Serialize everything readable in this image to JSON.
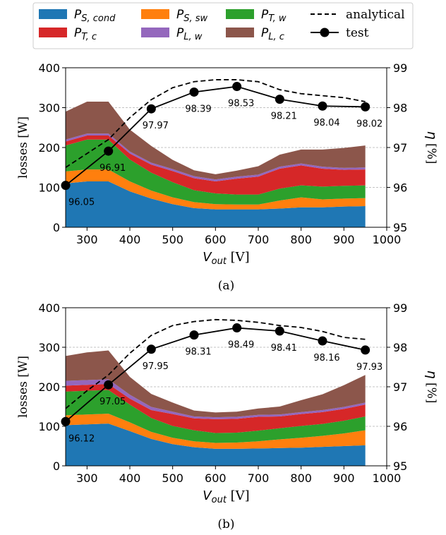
{
  "legend": {
    "placement": "top",
    "entries": [
      {
        "key": "p_s_cond",
        "base": "P",
        "sub": "S, cond",
        "color": "#1f77b4",
        "kind": "patch"
      },
      {
        "key": "p_t_c",
        "base": "P",
        "sub": "T, c",
        "color": "#d62728",
        "kind": "patch"
      },
      {
        "key": "p_s_sw",
        "base": "P",
        "sub": "S, sw",
        "color": "#ff7f0e",
        "kind": "patch"
      },
      {
        "key": "p_l_w",
        "base": "P",
        "sub": "L, w",
        "color": "#9467bd",
        "kind": "patch"
      },
      {
        "key": "p_t_w",
        "base": "P",
        "sub": "T, w",
        "color": "#2ca02c",
        "kind": "patch"
      },
      {
        "key": "p_l_c",
        "base": "P",
        "sub": "L, c",
        "color": "#8c564b",
        "kind": "patch"
      },
      {
        "key": "analytical",
        "label": "analytical",
        "kind": "dashed-line"
      },
      {
        "key": "test",
        "label": "test",
        "kind": "marker-line"
      }
    ]
  },
  "chart_data": [
    {
      "type": "area",
      "caption": "(a)",
      "xlabel_base": "V",
      "xlabel_sub": "out",
      "xlabel_unit": " [V]",
      "ylabel": "losses [W]",
      "y2label_base": "η",
      "y2label_unit": " [%]",
      "xlim": [
        250,
        1000
      ],
      "ylim": [
        0,
        400
      ],
      "y2lim": [
        95,
        99
      ],
      "xticks": [
        300,
        400,
        500,
        600,
        700,
        800,
        900,
        1000
      ],
      "yticks": [
        0,
        100,
        200,
        300,
        400
      ],
      "y2ticks": [
        95,
        96,
        97,
        98,
        99
      ],
      "grid": "horizontal dashed",
      "x": [
        250,
        300,
        350,
        400,
        450,
        500,
        550,
        600,
        650,
        700,
        750,
        800,
        850,
        900,
        950
      ],
      "series": [
        {
          "key": "p_s_cond",
          "values": [
            110,
            115,
            115,
            90,
            72,
            58,
            48,
            45,
            45,
            45,
            47,
            50,
            50,
            52,
            53
          ]
        },
        {
          "key": "p_s_sw",
          "values": [
            30,
            30,
            30,
            25,
            20,
            17,
            15,
            13,
            12,
            12,
            20,
            25,
            20,
            20,
            20
          ]
        },
        {
          "key": "p_t_w",
          "values": [
            65,
            75,
            75,
            55,
            45,
            38,
            30,
            27,
            25,
            25,
            30,
            30,
            32,
            32,
            32
          ]
        },
        {
          "key": "p_t_c",
          "values": [
            10,
            10,
            10,
            15,
            20,
            28,
            30,
            30,
            40,
            45,
            50,
            50,
            45,
            40,
            40
          ]
        },
        {
          "key": "p_l_w",
          "values": [
            5,
            5,
            5,
            5,
            5,
            5,
            5,
            5,
            5,
            5,
            5,
            5,
            5,
            5,
            5
          ]
        },
        {
          "key": "p_l_c",
          "values": [
            70,
            80,
            80,
            55,
            42,
            23,
            15,
            13,
            15,
            21,
            30,
            35,
            43,
            50,
            55
          ]
        }
      ],
      "analytical": {
        "x": [
          250,
          300,
          350,
          400,
          450,
          500,
          550,
          600,
          650,
          700,
          750,
          800,
          850,
          900,
          950
        ],
        "values": [
          96.5,
          96.85,
          97.2,
          97.75,
          98.2,
          98.5,
          98.65,
          98.7,
          98.7,
          98.65,
          98.45,
          98.35,
          98.3,
          98.25,
          98.15
        ]
      },
      "test": {
        "x": [
          250,
          350,
          450,
          550,
          650,
          750,
          850,
          950
        ],
        "values": [
          96.05,
          96.91,
          97.97,
          98.39,
          98.53,
          98.21,
          98.04,
          98.02
        ],
        "labels": [
          "96.05",
          "96.91",
          "97.97",
          "98.39",
          "98.53",
          "98.21",
          "98.04",
          "98.02"
        ]
      }
    },
    {
      "type": "area",
      "caption": "(b)",
      "xlabel_base": "V",
      "xlabel_sub": "out",
      "xlabel_unit": " [V]",
      "ylabel": "losses [W]",
      "y2label_base": "η",
      "y2label_unit": " [%]",
      "xlim": [
        250,
        1000
      ],
      "ylim": [
        0,
        400
      ],
      "y2lim": [
        95,
        99
      ],
      "xticks": [
        300,
        400,
        500,
        600,
        700,
        800,
        900,
        1000
      ],
      "yticks": [
        0,
        100,
        200,
        300,
        400
      ],
      "y2ticks": [
        95,
        96,
        97,
        98,
        99
      ],
      "grid": "horizontal dashed",
      "x": [
        250,
        300,
        350,
        400,
        450,
        500,
        550,
        600,
        650,
        700,
        750,
        800,
        850,
        900,
        950
      ],
      "series": [
        {
          "key": "p_s_cond",
          "values": [
            103,
            105,
            107,
            88,
            68,
            55,
            47,
            43,
            43,
            44,
            45,
            46,
            48,
            50,
            52
          ]
        },
        {
          "key": "p_s_sw",
          "values": [
            25,
            25,
            25,
            22,
            18,
            16,
            15,
            15,
            16,
            18,
            22,
            25,
            28,
            32,
            38
          ]
        },
        {
          "key": "p_t_w",
          "values": [
            60,
            60,
            60,
            45,
            35,
            30,
            28,
            25,
            25,
            27,
            28,
            30,
            30,
            32,
            35
          ]
        },
        {
          "key": "p_t_c",
          "values": [
            15,
            15,
            15,
            15,
            20,
            30,
            30,
            35,
            35,
            35,
            30,
            30,
            30,
            30,
            30
          ]
        },
        {
          "key": "p_l_w",
          "values": [
            12,
            12,
            12,
            10,
            8,
            6,
            5,
            5,
            5,
            5,
            5,
            5,
            5,
            5,
            5
          ]
        },
        {
          "key": "p_l_c",
          "values": [
            63,
            70,
            73,
            45,
            33,
            23,
            15,
            12,
            13,
            16,
            20,
            30,
            40,
            55,
            70
          ]
        }
      ],
      "analytical": {
        "x": [
          250,
          300,
          350,
          400,
          450,
          500,
          550,
          600,
          650,
          700,
          750,
          800,
          850,
          900,
          950
        ],
        "values": [
          96.45,
          96.9,
          97.3,
          97.85,
          98.3,
          98.55,
          98.65,
          98.7,
          98.68,
          98.63,
          98.55,
          98.5,
          98.4,
          98.25,
          98.2
        ]
      },
      "test": {
        "x": [
          250,
          350,
          450,
          550,
          650,
          750,
          850,
          950
        ],
        "values": [
          96.12,
          97.05,
          97.95,
          98.31,
          98.49,
          98.41,
          98.16,
          97.93
        ],
        "labels": [
          "96.12",
          "97.05",
          "97.95",
          "98.31",
          "98.49",
          "98.41",
          "98.16",
          "97.93"
        ]
      }
    }
  ]
}
